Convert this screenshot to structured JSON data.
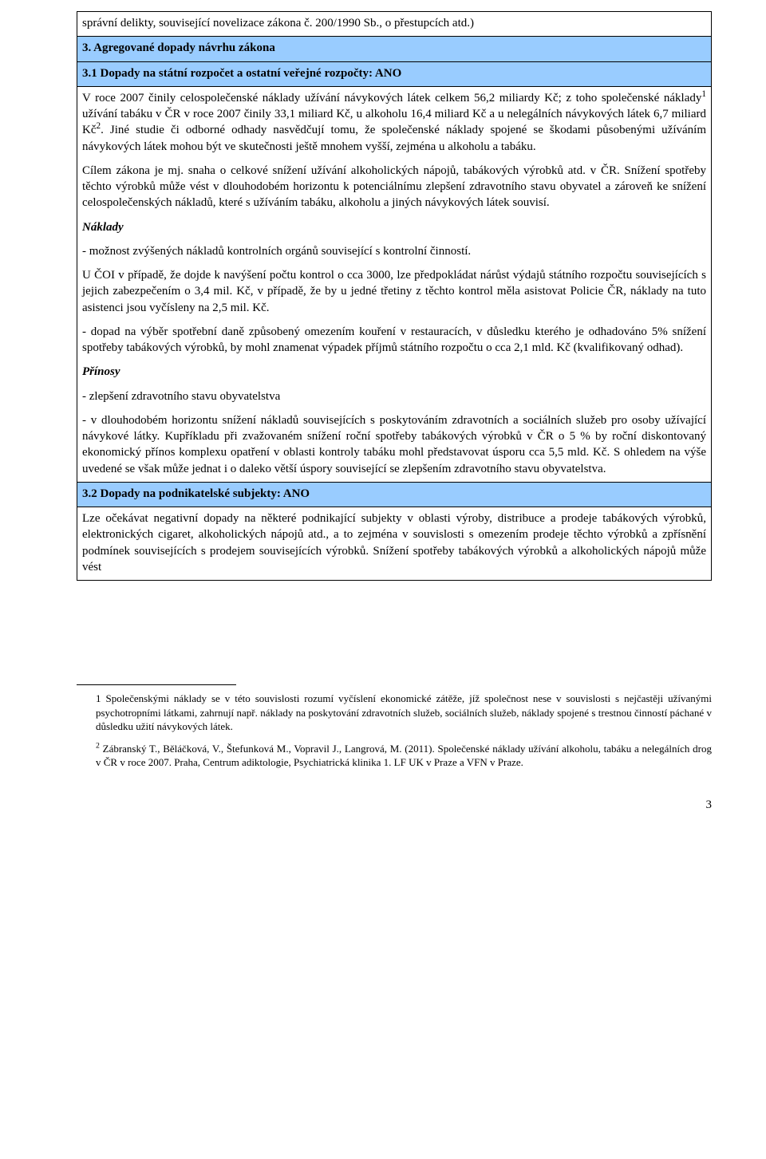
{
  "colors": {
    "header_bg": "#99ccff",
    "border": "#000000",
    "text": "#000000",
    "page_bg": "#ffffff"
  },
  "typography": {
    "body_family": "Times New Roman",
    "body_size_pt": 12,
    "footnote_size_pt": 10
  },
  "table": {
    "r0": {
      "text": "správní delikty, související novelizace zákona č. 200/1990 Sb., o přestupcích atd.)"
    },
    "r1": {
      "heading": "3. Agregované dopady návrhu zákona"
    },
    "r2": {
      "heading": "3.1 Dopady na státní rozpočet a ostatní veřejné rozpočty: ANO",
      "p1a": "V roce 2007 činily celospolečenské náklady užívání návykových látek celkem 56,2 miliardy Kč; z toho společenské náklady",
      "p1b": " užívání tabáku v ČR v roce 2007 činily 33,1 miliard Kč, u alkoholu 16,4 miliard Kč a u nelegálních návykových látek 6,7 miliard Kč",
      "p1c": ". Jiné studie či odborné odhady nasvědčují tomu, že společenské náklady spojené se škodami působenými užíváním návykových látek mohou být ve skutečnosti ještě mnohem vyšší, zejména u alkoholu a tabáku.",
      "p2": " Cílem zákona je mj. snaha o celkové snížení užívání alkoholických nápojů, tabákových výrobků atd. v ČR. Snížení spotřeby těchto výrobků může vést v dlouhodobém horizontu k potenciálnímu zlepšení zdravotního stavu obyvatel a zároveň ke snížení celospolečenských nákladů, které s užíváním tabáku, alkoholu a jiných návykových látek souvisí.",
      "naklady_label": "Náklady",
      "p3": "- možnost zvýšených nákladů kontrolních orgánů související s kontrolní činností.",
      "p4": "U ČOI v případě, že dojde k navýšení počtu kontrol o cca 3000, lze předpokládat nárůst výdajů státního rozpočtu souvisejících s jejich zabezpečením o 3,4 mil. Kč, v případě, že by u jedné třetiny z těchto kontrol měla asistovat Policie ČR, náklady na tuto asistenci jsou vyčísleny na 2,5 mil. Kč.",
      "p5": "- dopad na výběr spotřební daně způsobený omezením kouření v restauracích, v důsledku kterého je odhadováno 5% snížení spotřeby tabákových výrobků, by mohl znamenat výpadek příjmů státního rozpočtu o cca 2,1 mld. Kč (kvalifikovaný odhad).",
      "prinosy_label": "Přínosy",
      "p6": "- zlepšení zdravotního stavu obyvatelstva",
      "p7": "- v dlouhodobém horizontu snížení nákladů souvisejících s poskytováním zdravotních a sociálních služeb pro osoby užívající návykové látky. Kupříkladu při zvažovaném snížení roční spotřeby tabákových výrobků v ČR o 5 % by roční diskontovaný ekonomický přínos komplexu opatření v oblasti kontroly tabáku mohl představovat úsporu cca 5,5 mld. Kč. S ohledem na výše uvedené se však může jednat i o daleko větší úspory související se zlepšením zdravotního stavu obyvatelstva."
    },
    "r3": {
      "heading": "3.2 Dopady na podnikatelské subjekty: ANO",
      "p1": "Lze očekávat negativní dopady na některé podnikající subjekty v oblasti výroby, distribuce a prodeje tabákových výrobků, elektronických cigaret, alkoholických nápojů atd., a to zejména v souvislosti s omezením prodeje těchto výrobků a zpřísnění podmínek souvisejících s prodejem souvisejících výrobků. Snížení spotřeby tabákových výrobků a alkoholických nápojů může vést"
    }
  },
  "footnotes": {
    "fn1_num": "1",
    "fn1": "Společenskými náklady se v této souvislosti rozumí vyčíslení ekonomické zátěže, jíž společnost nese v souvislosti s nejčastěji užívanými psychotropními látkami, zahrnují např. náklady na poskytování zdravotních služeb, sociálních služeb, náklady spojené s trestnou činností páchané v důsledku užití návykových látek.",
    "fn2_num": "2",
    "fn2": "Zábranský T., Běláčková, V., Štefunková M., Vopravil J., Langrová, M. (2011). Společenské náklady užívání alkoholu, tabáku a nelegálních drog v ČR v roce 2007. Praha, Centrum adiktologie, Psychiatrická klinika 1. LF UK v Praze a VFN v Praze."
  },
  "page_number": "3"
}
